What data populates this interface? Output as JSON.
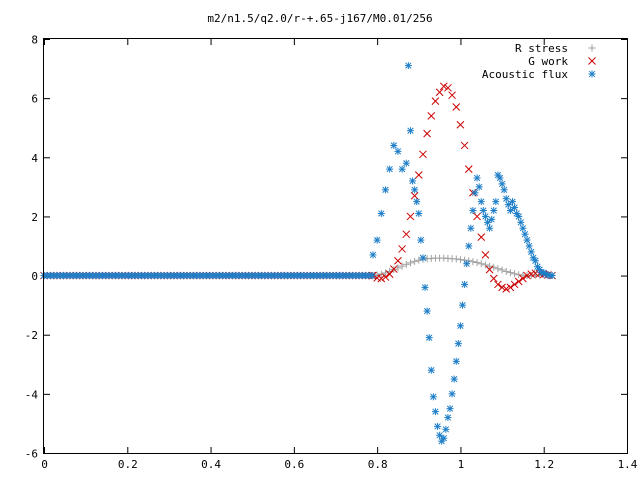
{
  "chart_data": {
    "type": "scatter",
    "title": "m2/n1.5/q2.0/r-+.65-j167/M0.01/256",
    "xlabel": "",
    "ylabel": "",
    "xlim": [
      0,
      1.4
    ],
    "ylim": [
      -6,
      8
    ],
    "xticks": [
      "0",
      "0.2",
      "0.4",
      "0.6",
      "0.8",
      "1",
      "1.2",
      "1.4"
    ],
    "yticks": [
      "-6",
      "-4",
      "-2",
      "0",
      "2",
      "4",
      "6",
      "8"
    ],
    "grid": false,
    "legend_position": "top-right",
    "series": [
      {
        "name": "R stress",
        "marker": "plus",
        "color": "#a0a0a0",
        "x": [
          0.79,
          0.8,
          0.81,
          0.82,
          0.83,
          0.84,
          0.85,
          0.86,
          0.87,
          0.88,
          0.89,
          0.9,
          0.91,
          0.92,
          0.93,
          0.94,
          0.95,
          0.96,
          0.97,
          0.98,
          0.99,
          1.0,
          1.01,
          1.02,
          1.03,
          1.04,
          1.05,
          1.06,
          1.07,
          1.08,
          1.09,
          1.1,
          1.11,
          1.12,
          1.13,
          1.14,
          1.15,
          1.16,
          1.17,
          1.18,
          1.19,
          1.2,
          1.21,
          1.22
        ],
        "y": [
          0.0,
          0.02,
          0.05,
          0.09,
          0.14,
          0.2,
          0.26,
          0.32,
          0.38,
          0.43,
          0.48,
          0.52,
          0.55,
          0.57,
          0.58,
          0.59,
          0.59,
          0.59,
          0.58,
          0.57,
          0.56,
          0.54,
          0.52,
          0.5,
          0.47,
          0.44,
          0.4,
          0.36,
          0.32,
          0.28,
          0.23,
          0.19,
          0.14,
          0.1,
          0.06,
          0.03,
          0.01,
          0.0,
          0.0,
          0.01,
          0.02,
          0.03,
          0.02,
          0.01
        ]
      },
      {
        "name": "G work",
        "marker": "cross",
        "color": "#cc0000",
        "x": [
          0.79,
          0.8,
          0.81,
          0.82,
          0.83,
          0.84,
          0.85,
          0.86,
          0.87,
          0.88,
          0.89,
          0.9,
          0.91,
          0.92,
          0.93,
          0.94,
          0.95,
          0.96,
          0.97,
          0.98,
          0.99,
          1.0,
          1.01,
          1.02,
          1.03,
          1.04,
          1.05,
          1.06,
          1.07,
          1.08,
          1.09,
          1.1,
          1.11,
          1.12,
          1.13,
          1.14,
          1.15,
          1.16,
          1.17,
          1.18,
          1.19,
          1.2,
          1.21,
          1.22
        ],
        "y": [
          0.0,
          -0.08,
          -0.1,
          -0.05,
          0.05,
          0.22,
          0.5,
          0.9,
          1.4,
          2.0,
          2.7,
          3.4,
          4.1,
          4.8,
          5.4,
          5.9,
          6.2,
          6.4,
          6.35,
          6.1,
          5.7,
          5.1,
          4.4,
          3.6,
          2.8,
          2.0,
          1.3,
          0.7,
          0.2,
          -0.1,
          -0.3,
          -0.4,
          -0.45,
          -0.4,
          -0.3,
          -0.2,
          -0.1,
          0.0,
          0.05,
          0.08,
          0.06,
          0.04,
          0.02,
          0.0
        ]
      },
      {
        "name": "Acoustic flux",
        "marker": "star",
        "color": "#1e7ec8",
        "x": [
          0.79,
          0.8,
          0.81,
          0.82,
          0.83,
          0.84,
          0.85,
          0.86,
          0.87,
          0.875,
          0.88,
          0.885,
          0.89,
          0.895,
          0.9,
          0.905,
          0.91,
          0.915,
          0.92,
          0.925,
          0.93,
          0.935,
          0.94,
          0.945,
          0.95,
          0.955,
          0.96,
          0.965,
          0.97,
          0.975,
          0.98,
          0.985,
          0.99,
          0.995,
          1.0,
          1.005,
          1.01,
          1.015,
          1.02,
          1.025,
          1.03,
          1.035,
          1.04,
          1.045,
          1.05,
          1.055,
          1.06,
          1.065,
          1.07,
          1.075,
          1.08,
          1.085,
          1.09,
          1.095,
          1.1,
          1.105,
          1.11,
          1.115,
          1.12,
          1.125,
          1.13,
          1.135,
          1.14,
          1.145,
          1.15,
          1.155,
          1.16,
          1.165,
          1.17,
          1.175,
          1.18,
          1.185,
          1.19,
          1.195,
          1.2,
          1.205,
          1.21,
          1.215,
          1.22
        ],
        "y": [
          0.7,
          1.2,
          2.1,
          2.9,
          3.6,
          4.4,
          4.2,
          3.6,
          3.8,
          7.1,
          4.9,
          3.2,
          2.9,
          2.5,
          2.1,
          1.2,
          0.6,
          -0.4,
          -1.2,
          -2.1,
          -3.2,
          -4.1,
          -4.6,
          -5.1,
          -5.4,
          -5.6,
          -5.5,
          -5.2,
          -4.8,
          -4.5,
          -4.0,
          -3.5,
          -2.9,
          -2.3,
          -1.7,
          -1.0,
          -0.3,
          0.4,
          1.0,
          1.6,
          2.2,
          2.8,
          3.3,
          3.0,
          2.5,
          2.2,
          2.0,
          1.8,
          1.6,
          1.9,
          2.2,
          2.5,
          3.4,
          3.3,
          3.1,
          2.9,
          2.6,
          2.4,
          2.2,
          2.5,
          2.3,
          2.1,
          2.0,
          1.8,
          1.6,
          1.4,
          1.2,
          1.0,
          0.8,
          0.6,
          0.5,
          0.3,
          0.2,
          0.1,
          0.1,
          0.05,
          0.02,
          0.0,
          0.0
        ]
      }
    ]
  }
}
